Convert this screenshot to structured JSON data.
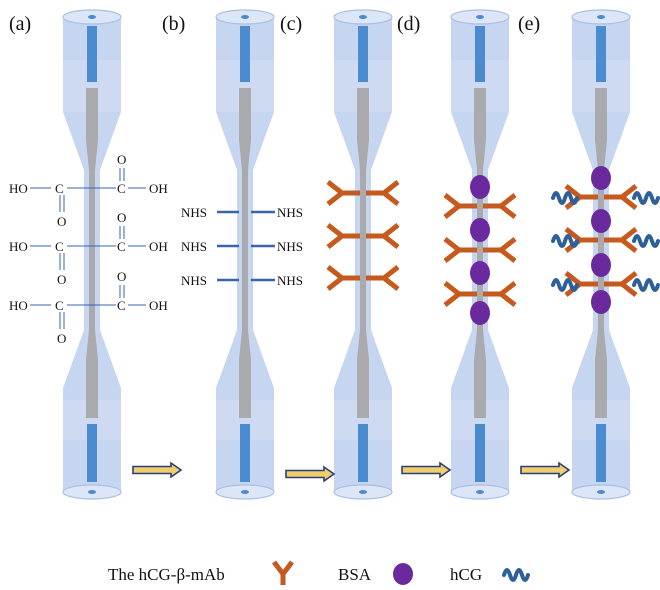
{
  "panels": [
    {
      "label": "(a)",
      "stage": "carboxyl"
    },
    {
      "label": "(b)",
      "stage": "nhs"
    },
    {
      "label": "(c)",
      "stage": "antibody"
    },
    {
      "label": "(d)",
      "stage": "bsa"
    },
    {
      "label": "(e)",
      "stage": "hcg"
    }
  ],
  "chemistry": {
    "ho": "HO",
    "oh": "OH",
    "o": "O",
    "c": "C",
    "nhs": "NHS"
  },
  "legend": {
    "antibody_label": "The hCG-β-mAb",
    "bsa_label": "BSA",
    "hcg_label": "hCG"
  },
  "colors": {
    "tube_fill": "#c3d3ef",
    "tube_edge": "#a9bfe6",
    "fiber": "#a9a9ae",
    "core": "#4b8bd0",
    "antibody": "#c65a1e",
    "bsa": "#6a2a9e",
    "hcg": "#2d5f9a",
    "linker": "#3a63b0",
    "arrow_fill": "#f0cf6a",
    "arrow_edge": "#2b3f7a"
  }
}
